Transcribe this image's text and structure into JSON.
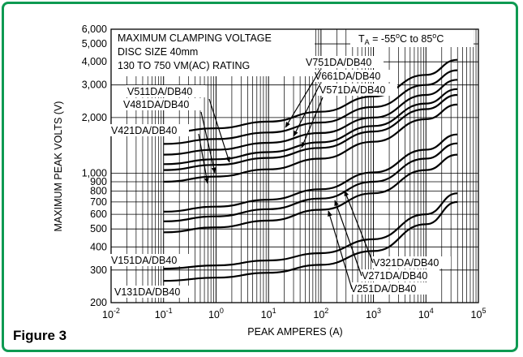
{
  "figure_label": "Figure 3",
  "chart_data": {
    "type": "line",
    "xscale": "log",
    "yscale": "log",
    "xlim": [
      0.01,
      100000
    ],
    "ylim": [
      200,
      6000
    ],
    "xlabel": "PEAK AMPERES (A)",
    "ylabel": "MAXIMUM PEAK VOLTS (V)",
    "xticks": [
      {
        "value": 0.01,
        "base": "10",
        "exp": "-2"
      },
      {
        "value": 0.1,
        "base": "10",
        "exp": "-1"
      },
      {
        "value": 1,
        "base": "10",
        "exp": "0"
      },
      {
        "value": 10,
        "base": "10",
        "exp": "1"
      },
      {
        "value": 100,
        "base": "10",
        "exp": "2"
      },
      {
        "value": 1000,
        "base": "10",
        "exp": "3"
      },
      {
        "value": 10000,
        "base": "10",
        "exp": "4"
      },
      {
        "value": 100000,
        "base": "10",
        "exp": "5"
      }
    ],
    "yticks": [
      {
        "value": 200,
        "label": "200"
      },
      {
        "value": 300,
        "label": "300"
      },
      {
        "value": 400,
        "label": "400"
      },
      {
        "value": 500,
        "label": "500"
      },
      {
        "value": 600,
        "label": "600"
      },
      {
        "value": 700,
        "label": "700"
      },
      {
        "value": 800,
        "label": "800"
      },
      {
        "value": 900,
        "label": "900"
      },
      {
        "value": 1000,
        "label": "1,000"
      },
      {
        "value": 2000,
        "label": "2,000"
      },
      {
        "value": 3000,
        "label": "3,000"
      },
      {
        "value": 4000,
        "label": "4,000"
      },
      {
        "value": 5000,
        "label": "5,000"
      },
      {
        "value": 6000,
        "label": "6,000"
      }
    ],
    "annotation_lines": [
      "MAXIMUM CLAMPING  VOLTAGE",
      "DISC SIZE 40mm",
      "130 TO 750 VM(AC) RATING"
    ],
    "temperature_note": {
      "prefix": "T",
      "subscript": "A",
      "text": " = -55",
      "unit1": "C to 85",
      "unit2": "C"
    },
    "series": [
      {
        "name": "V751DA/DB40",
        "x": [
          0.1,
          1,
          10,
          100,
          1000,
          10000,
          40000
        ],
        "y": [
          1650,
          1750,
          1900,
          2150,
          2600,
          3400,
          4100
        ]
      },
      {
        "name": "V661DA/DB40",
        "x": [
          0.1,
          1,
          10,
          100,
          1000,
          10000,
          40000
        ],
        "y": [
          1440,
          1530,
          1660,
          1880,
          2280,
          3000,
          3600
        ]
      },
      {
        "name": "V571DA/DB40",
        "x": [
          0.1,
          1,
          10,
          100,
          1000,
          10000,
          40000
        ],
        "y": [
          1260,
          1340,
          1460,
          1650,
          2000,
          2650,
          3200
        ]
      },
      {
        "name": "V511DA/DB40",
        "x": [
          0.1,
          1,
          10,
          100,
          1000,
          10000,
          40000
        ],
        "y": [
          1120,
          1190,
          1300,
          1470,
          1800,
          2380,
          2850
        ]
      },
      {
        "name": "V481DA/DB40",
        "x": [
          0.1,
          1,
          10,
          100,
          1000,
          10000,
          40000
        ],
        "y": [
          1040,
          1110,
          1210,
          1370,
          1680,
          2220,
          2650
        ]
      },
      {
        "name": "V421DA/DB40",
        "x": [
          0.1,
          1,
          10,
          100,
          1000,
          10000,
          40000
        ],
        "y": [
          900,
          960,
          1050,
          1200,
          1480,
          1960,
          2350
        ]
      },
      {
        "name": "V321DA/DB40",
        "x": [
          0.1,
          1,
          10,
          100,
          1000,
          10000,
          40000
        ],
        "y": [
          620,
          660,
          720,
          820,
          1010,
          1340,
          1620
        ]
      },
      {
        "name": "V271DA/DB40",
        "x": [
          0.1,
          1,
          10,
          100,
          1000,
          10000,
          40000
        ],
        "y": [
          550,
          585,
          640,
          730,
          900,
          1200,
          1450
        ]
      },
      {
        "name": "V251DA/DB40",
        "x": [
          0.1,
          1,
          10,
          100,
          1000,
          10000,
          40000
        ],
        "y": [
          480,
          510,
          555,
          635,
          780,
          1040,
          1260
        ]
      },
      {
        "name": "V151DA/DB40",
        "x": [
          0.1,
          1,
          10,
          100,
          1000,
          10000,
          40000
        ],
        "y": [
          305,
          318,
          338,
          370,
          440,
          600,
          780
        ]
      },
      {
        "name": "V131DA/DB40",
        "x": [
          0.1,
          1,
          10,
          100,
          1000,
          10000,
          40000
        ],
        "y": [
          262,
          273,
          290,
          320,
          380,
          530,
          700
        ]
      }
    ],
    "grid": true,
    "legend": "none"
  }
}
